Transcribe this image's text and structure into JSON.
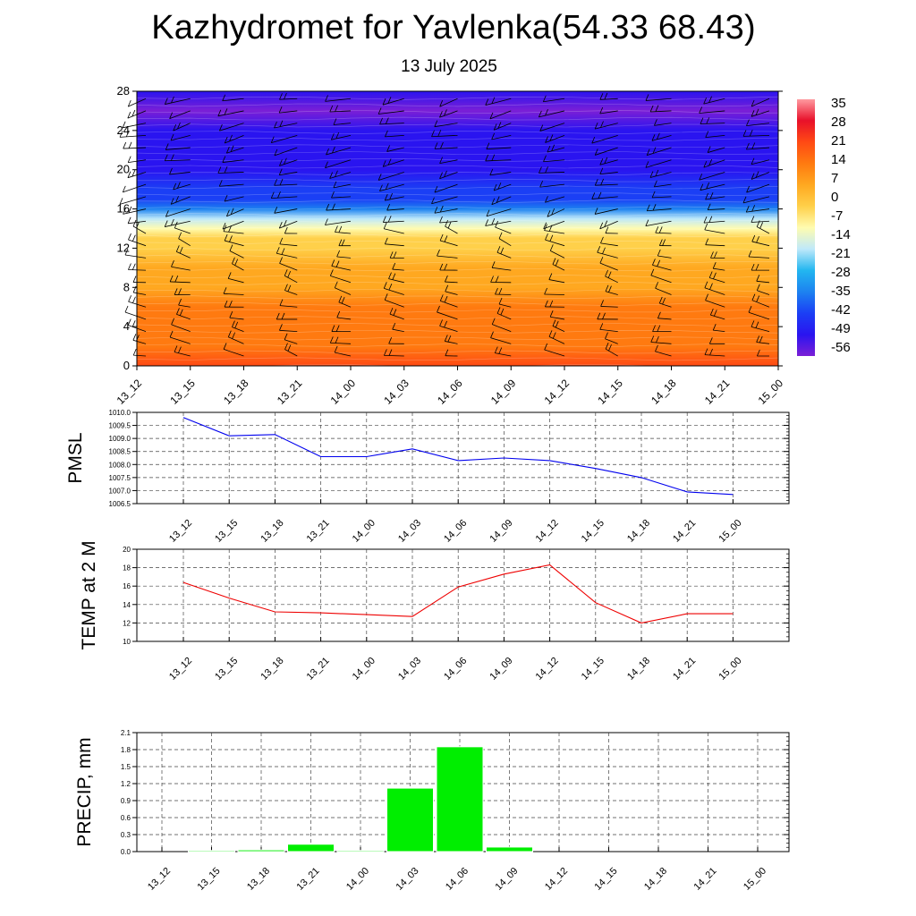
{
  "title": "Kazhydromet for Yavlenka(54.33 68.43)",
  "subtitle": "13 July 2025",
  "time_labels": [
    "13_12",
    "13_15",
    "13_18",
    "13_21",
    "14_00",
    "14_03",
    "14_06",
    "14_09",
    "14_12",
    "14_15",
    "14_18",
    "14_21",
    "15_00"
  ],
  "chart_data": [
    {
      "type": "heatmap",
      "name": "temperature-wind-cross-section",
      "x": [
        "13_12",
        "13_15",
        "13_18",
        "13_21",
        "14_00",
        "14_03",
        "14_06",
        "14_09",
        "14_12",
        "14_15",
        "14_18",
        "14_21",
        "15_00"
      ],
      "ylim": [
        0,
        28
      ],
      "yticks": [
        0,
        4,
        8,
        12,
        16,
        20,
        24,
        28
      ],
      "y_profile": [
        0,
        2,
        4,
        6,
        8,
        10,
        12,
        13,
        14,
        15,
        16,
        17,
        18,
        20,
        22,
        24,
        26,
        28
      ],
      "temperature_profile": [
        17,
        14,
        11,
        8,
        5,
        1,
        -3,
        -7,
        -14,
        -21,
        -30,
        -38,
        -44,
        -47,
        -48,
        -50,
        -54,
        -52
      ],
      "colorbar": {
        "labels": [
          "35",
          "28",
          "21",
          "14",
          "7",
          "0",
          "-7",
          "-14",
          "-21",
          "-28",
          "-35",
          "-42",
          "-49",
          "-56"
        ],
        "min": -60,
        "max": 38,
        "colors": [
          "#7b1fd6",
          "#2a14f0",
          "#1b3ff5",
          "#1d82f0",
          "#22b6f0",
          "#bfe9fa",
          "#fffcb0",
          "#ffd04a",
          "#ffa820",
          "#ff7a10",
          "#ff4a14",
          "#e8102a",
          "#ff9aa0"
        ]
      },
      "wind_barbs": true,
      "grid": false
    },
    {
      "type": "line",
      "ylabel": "PMSL",
      "x": [
        "13_12",
        "13_15",
        "13_18",
        "13_21",
        "14_00",
        "14_03",
        "14_06",
        "14_09",
        "14_12",
        "14_15",
        "14_18",
        "14_21",
        "15_00"
      ],
      "series": [
        {
          "values": [
            1009.8,
            1009.1,
            1009.15,
            1008.3,
            1008.3,
            1008.6,
            1008.15,
            1008.25,
            1008.15,
            1007.85,
            1007.5,
            1006.95,
            1006.85
          ]
        }
      ],
      "ylim": [
        1006.5,
        1010.0
      ],
      "yticks": [
        "1006.5",
        "1007.0",
        "1007.5",
        "1008.0",
        "1008.5",
        "1009.0",
        "1009.5",
        "1010.0"
      ],
      "color": "#0000ee",
      "grid": true
    },
    {
      "type": "line",
      "ylabel": "TEMP at 2 M",
      "x": [
        "13_12",
        "13_15",
        "13_18",
        "13_21",
        "14_00",
        "14_03",
        "14_06",
        "14_09",
        "14_12",
        "14_15",
        "14_18",
        "14_21",
        "15_00"
      ],
      "series": [
        {
          "values": [
            16.4,
            14.7,
            13.2,
            13.1,
            12.9,
            12.7,
            15.9,
            17.3,
            18.3,
            14.2,
            12.0,
            13.0,
            13.0
          ]
        }
      ],
      "ylim": [
        10,
        20
      ],
      "yticks": [
        "10",
        "12",
        "14",
        "16",
        "18",
        "20"
      ],
      "color": "#ee0000",
      "grid": true
    },
    {
      "type": "bar",
      "ylabel": "PRECIP, mm",
      "categories": [
        "13_12",
        "13_15",
        "13_18",
        "13_21",
        "14_00",
        "14_03",
        "14_06",
        "14_09",
        "14_12",
        "14_15",
        "14_18",
        "14_21",
        "15_00"
      ],
      "values": [
        0,
        0.02,
        0.03,
        0.13,
        0.02,
        1.12,
        1.85,
        0.08,
        0,
        0,
        0,
        0,
        0
      ],
      "ylim": [
        0,
        2.1
      ],
      "yticks": [
        "0.0",
        "0.3",
        "0.6",
        "0.9",
        "1.2",
        "1.5",
        "1.8",
        "2.1"
      ],
      "color": "#00ee00",
      "grid": true
    }
  ]
}
